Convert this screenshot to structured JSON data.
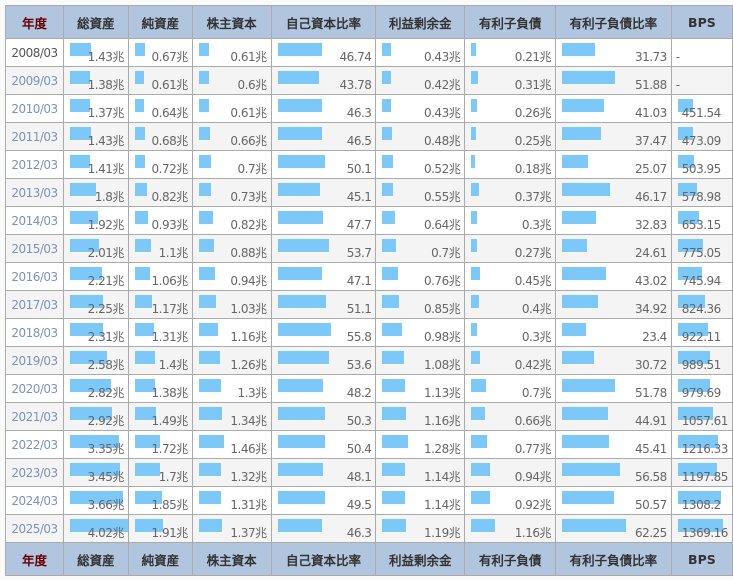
{
  "headers": [
    "年度",
    "総資産",
    "純資産",
    "株主資本",
    "自己資本比率",
    "利益剰余金",
    "有利子負債",
    "有利子負債比率",
    "BPS"
  ],
  "unit": "兆",
  "bar_color": "#7cc8f8",
  "rows": [
    [
      "2008/03",
      "1.43",
      "0.67",
      "0.61",
      "46.74",
      "0.43",
      "0.21",
      "31.73",
      "-"
    ],
    [
      "2009/03",
      "1.38",
      "0.61",
      "0.6",
      "43.78",
      "0.42",
      "0.31",
      "51.88",
      "-"
    ],
    [
      "2010/03",
      "1.37",
      "0.64",
      "0.61",
      "46.3",
      "0.43",
      "0.26",
      "41.03",
      "451.54"
    ],
    [
      "2011/03",
      "1.43",
      "0.68",
      "0.66",
      "46.5",
      "0.48",
      "0.25",
      "37.47",
      "473.09"
    ],
    [
      "2012/03",
      "1.41",
      "0.72",
      "0.7",
      "50.1",
      "0.52",
      "0.18",
      "25.07",
      "503.95"
    ],
    [
      "2013/03",
      "1.8",
      "0.82",
      "0.73",
      "45.1",
      "0.55",
      "0.37",
      "46.17",
      "578.98"
    ],
    [
      "2014/03",
      "1.92",
      "0.93",
      "0.82",
      "47.7",
      "0.64",
      "0.3",
      "32.83",
      "653.15"
    ],
    [
      "2015/03",
      "2.01",
      "1.1",
      "0.88",
      "53.7",
      "0.7",
      "0.27",
      "24.61",
      "775.05"
    ],
    [
      "2016/03",
      "2.21",
      "1.06",
      "0.94",
      "47.1",
      "0.76",
      "0.45",
      "43.02",
      "745.94"
    ],
    [
      "2017/03",
      "2.25",
      "1.17",
      "1.03",
      "51.1",
      "0.85",
      "0.4",
      "34.92",
      "824.36"
    ],
    [
      "2018/03",
      "2.31",
      "1.31",
      "1.16",
      "55.8",
      "0.98",
      "0.3",
      "23.4",
      "922.11"
    ],
    [
      "2019/03",
      "2.58",
      "1.4",
      "1.26",
      "53.6",
      "1.08",
      "0.42",
      "30.72",
      "989.51"
    ],
    [
      "2020/03",
      "2.82",
      "1.38",
      "1.3",
      "48.2",
      "1.13",
      "0.7",
      "51.78",
      "979.69"
    ],
    [
      "2021/03",
      "2.92",
      "1.49",
      "1.34",
      "50.3",
      "1.16",
      "0.66",
      "44.91",
      "1057.61"
    ],
    [
      "2022/03",
      "3.35",
      "1.72",
      "1.46",
      "50.4",
      "1.28",
      "0.77",
      "45.41",
      "1216.33"
    ],
    [
      "2023/03",
      "3.45",
      "1.7",
      "1.32",
      "48.1",
      "1.14",
      "0.94",
      "56.58",
      "1197.85"
    ],
    [
      "2024/03",
      "3.66",
      "1.85",
      "1.31",
      "49.5",
      "1.14",
      "0.92",
      "50.57",
      "1308.2"
    ],
    [
      "2025/03",
      "4.02",
      "1.91",
      "1.37",
      "46.3",
      "1.19",
      "1.16",
      "62.25",
      "1369.16"
    ]
  ]
}
